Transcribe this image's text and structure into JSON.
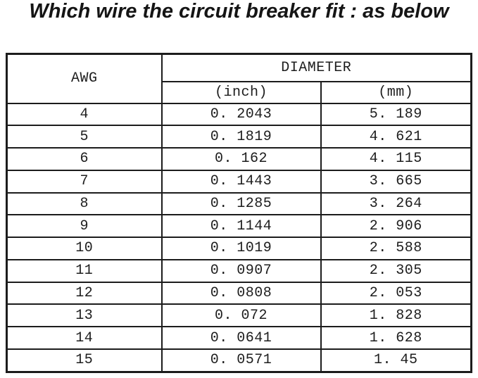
{
  "title": "Which wire the circuit breaker fit : as below",
  "table": {
    "headers": {
      "awg": "AWG",
      "diameter": "DIAMETER",
      "inch": "(inch)",
      "mm": "(mm)"
    },
    "rows": [
      {
        "awg": "4",
        "inch": "0. 2043",
        "mm": "5. 189"
      },
      {
        "awg": "5",
        "inch": "0. 1819",
        "mm": "4. 621"
      },
      {
        "awg": "6",
        "inch": "0. 162",
        "mm": "4. 115"
      },
      {
        "awg": "7",
        "inch": "0. 1443",
        "mm": "3. 665"
      },
      {
        "awg": "8",
        "inch": "0. 1285",
        "mm": "3. 264"
      },
      {
        "awg": "9",
        "inch": "0. 1144",
        "mm": "2. 906"
      },
      {
        "awg": "10",
        "inch": "0. 1019",
        "mm": "2. 588"
      },
      {
        "awg": "11",
        "inch": "0. 0907",
        "mm": "2. 305"
      },
      {
        "awg": "12",
        "inch": "0. 0808",
        "mm": "2. 053"
      },
      {
        "awg": "13",
        "inch": "0. 072",
        "mm": "1. 828"
      },
      {
        "awg": "14",
        "inch": "0. 0641",
        "mm": "1. 628"
      },
      {
        "awg": "15",
        "inch": "0. 0571",
        "mm": "1. 45"
      }
    ]
  },
  "chart_data": {
    "type": "table",
    "title": "Which wire the circuit breaker fit : as below",
    "columns": [
      "AWG",
      "DIAMETER (inch)",
      "DIAMETER (mm)"
    ],
    "awg": [
      4,
      5,
      6,
      7,
      8,
      9,
      10,
      11,
      12,
      13,
      14,
      15
    ],
    "diameter_inch": [
      0.2043,
      0.1819,
      0.162,
      0.1443,
      0.1285,
      0.1144,
      0.1019,
      0.0907,
      0.0808,
      0.072,
      0.0641,
      0.0571
    ],
    "diameter_mm": [
      5.189,
      4.621,
      4.115,
      3.665,
      3.264,
      2.906,
      2.588,
      2.305,
      2.053,
      1.828,
      1.628,
      1.45
    ]
  }
}
